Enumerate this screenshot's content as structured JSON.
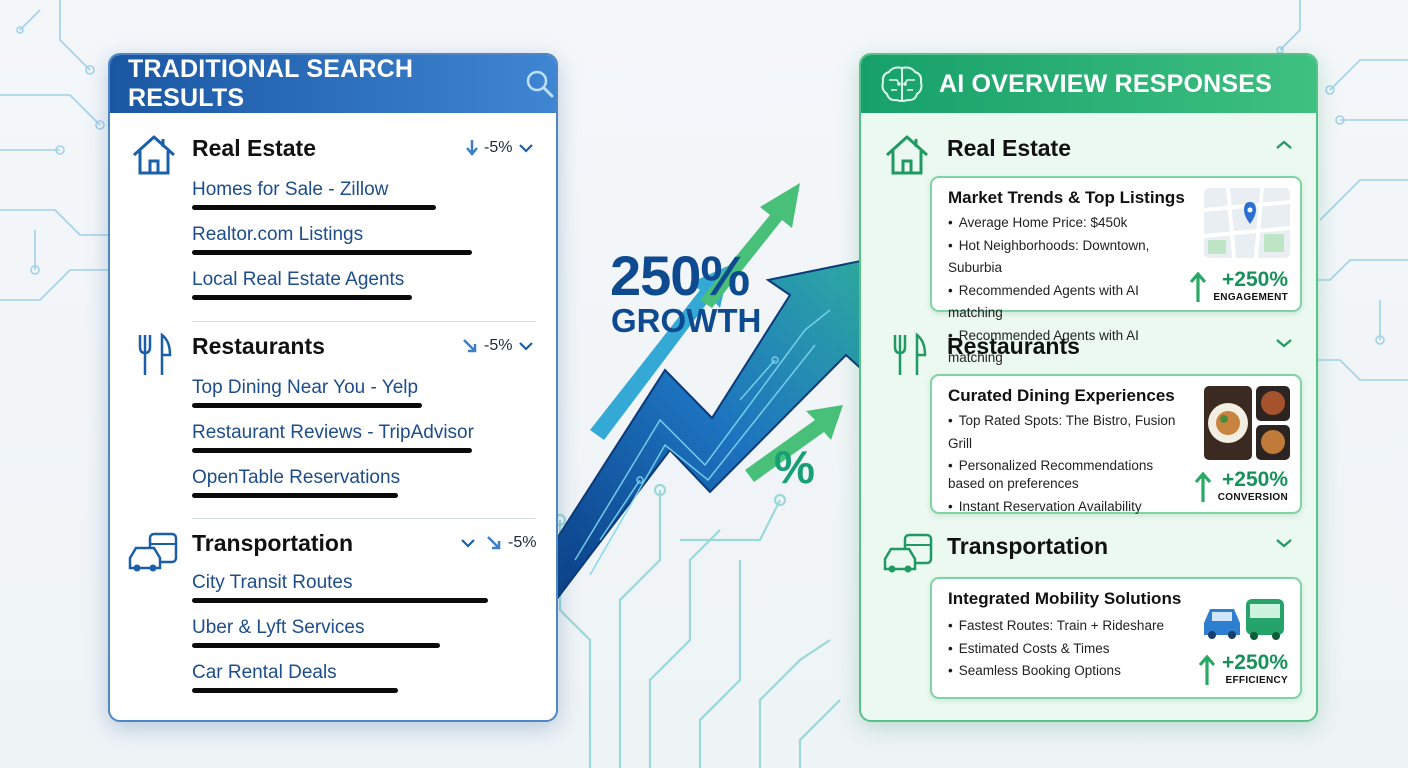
{
  "left_panel": {
    "title": "TRADITIONAL SEARCH RESULTS",
    "sections": [
      {
        "name": "Real Estate",
        "trend": "-5%",
        "links": [
          "Homes for Sale - Zillow",
          "Realtor.com Listings",
          "Local Real Estate Agents"
        ]
      },
      {
        "name": "Restaurants",
        "trend": "-5%",
        "links": [
          "Top Dining Near You - Yelp",
          "Restaurant Reviews - TripAdvisor",
          "OpenTable Reservations"
        ]
      },
      {
        "name": "Transportation",
        "trend": "-5%",
        "links": [
          "City Transit Routes",
          "Uber & Lyft Services",
          "Car Rental Deals"
        ]
      }
    ]
  },
  "center": {
    "growth_number": "250%",
    "growth_word": "GROWTH",
    "percent_symbol": "%"
  },
  "right_panel": {
    "title": "AI OVERVIEW RESPONSES",
    "sections": [
      {
        "name": "Real Estate",
        "card_title": "Market Trends & Top Listings",
        "bullets": [
          "Average Home Price: $450k",
          "Hot Neighborhoods: Downtown, Suburbia",
          "Recommended Agents with AI matching",
          "Recommended Agents with AI matching"
        ],
        "metric_value": "+250%",
        "metric_label": "ENGAGEMENT"
      },
      {
        "name": "Restaurants",
        "card_title": "Curated Dining Experiences",
        "bullets": [
          "Top Rated Spots: The Bistro, Fusion Grill",
          "Personalized Recommendations based on preferences",
          "Instant Reservation Availability"
        ],
        "metric_value": "+250%",
        "metric_label": "CONVERSION"
      },
      {
        "name": "Transportation",
        "card_title": "Integrated Mobility Solutions",
        "bullets": [
          "Fastest Routes: Train + Rideshare",
          "Estimated Costs & Times",
          "Seamless Booking Options"
        ],
        "metric_value": "+250%",
        "metric_label": "EFFICIENCY"
      }
    ]
  },
  "colors": {
    "traditional_blue": "#1a57a3",
    "ai_green": "#17a06a",
    "metric_green": "#17915a",
    "link_blue": "#1d4d8c"
  },
  "icons": [
    "search-icon",
    "brain-icon",
    "house-icon",
    "fork-knife-icon",
    "vehicles-icon",
    "map-thumbnail",
    "food-thumbnail",
    "car-bus-icon",
    "trend-down-arrow",
    "chevron-down-icon",
    "chevron-up-icon",
    "up-arrow-icon"
  ]
}
